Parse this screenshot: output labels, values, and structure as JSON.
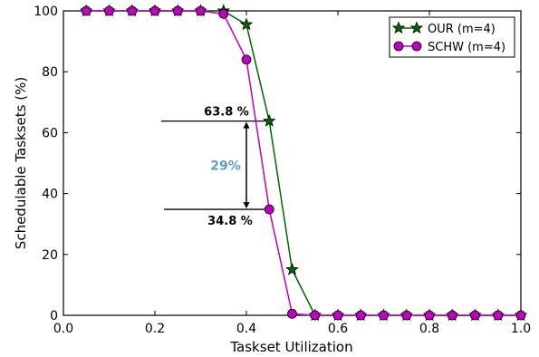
{
  "chart_data": {
    "type": "line",
    "xlabel": "Taskset Utilization",
    "ylabel": "Schedulable Tasksets (%)",
    "xlim": [
      0.0,
      1.0
    ],
    "ylim": [
      0,
      100
    ],
    "x_ticks": [
      "0.0",
      "0.2",
      "0.4",
      "0.6",
      "0.8",
      "1.0"
    ],
    "y_ticks": [
      "0",
      "20",
      "40",
      "60",
      "80",
      "100"
    ],
    "grid": false,
    "legend_position": "top-right",
    "series": [
      {
        "name": "OUR (m=4)",
        "color": "#006400",
        "marker": "star",
        "x": [
          0.05,
          0.1,
          0.15,
          0.2,
          0.25,
          0.3,
          0.35,
          0.4,
          0.45,
          0.5,
          0.55,
          0.6,
          0.65,
          0.7,
          0.75,
          0.8,
          0.85,
          0.9,
          0.95,
          1.0
        ],
        "y": [
          100,
          100,
          100,
          100,
          100,
          100,
          100,
          95.5,
          63.8,
          15,
          0,
          0,
          0,
          0,
          0,
          0,
          0,
          0,
          0,
          0
        ]
      },
      {
        "name": "SCHW (m=4)",
        "color": "#bf00bf",
        "marker": "circle",
        "x": [
          0.05,
          0.1,
          0.15,
          0.2,
          0.25,
          0.3,
          0.35,
          0.4,
          0.45,
          0.5,
          0.55,
          0.6,
          0.65,
          0.7,
          0.75,
          0.8,
          0.85,
          0.9,
          0.95,
          1.0
        ],
        "y": [
          100,
          100,
          100,
          100,
          100,
          100,
          99,
          84,
          34.8,
          0.5,
          0,
          0,
          0,
          0,
          0,
          0,
          0,
          0,
          0,
          0
        ]
      }
    ],
    "annotations": {
      "upper_label": "63.8 %",
      "lower_label": "34.8 %",
      "gap_label": "29%",
      "gap_color": "#5b9bd5",
      "upper_value": 63.8,
      "lower_value": 34.8
    }
  }
}
